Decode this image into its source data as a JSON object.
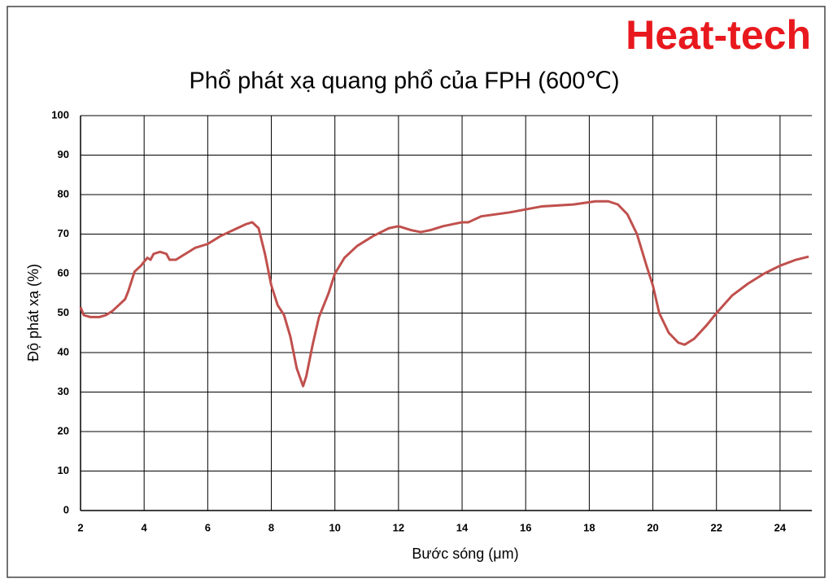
{
  "chart_data": {
    "type": "line",
    "title": "Phổ phát xạ quang phổ của FPH (600℃)",
    "annotations": [
      "Heat-tech"
    ],
    "x_label": "Bước sóng (μm)",
    "y_label": "Độ phát xạ (%)",
    "xlim": [
      2,
      25
    ],
    "xticks": [
      2,
      4,
      6,
      8,
      10,
      12,
      14,
      16,
      18,
      20,
      22,
      24
    ],
    "ylim": [
      0,
      100
    ],
    "yticks": [
      0,
      10,
      20,
      30,
      40,
      50,
      60,
      70,
      80,
      90,
      100
    ],
    "grid": true,
    "series": [
      {
        "name": "FPH",
        "color": "#c0504d",
        "x": [
          2.0,
          2.1,
          2.3,
          2.6,
          2.8,
          3.0,
          3.2,
          3.4,
          3.5,
          3.6,
          3.7,
          3.9,
          4.1,
          4.2,
          4.3,
          4.5,
          4.7,
          4.8,
          5.0,
          5.3,
          5.6,
          6.0,
          6.4,
          6.8,
          7.2,
          7.4,
          7.6,
          7.8,
          8.0,
          8.2,
          8.4,
          8.6,
          8.8,
          9.0,
          9.1,
          9.3,
          9.5,
          9.8,
          10.0,
          10.3,
          10.7,
          11.2,
          11.7,
          12.0,
          12.4,
          12.7,
          13.0,
          13.4,
          14.0,
          14.2,
          14.6,
          15.5,
          16.5,
          17.5,
          18.2,
          18.6,
          18.9,
          19.2,
          19.5,
          19.8,
          20.0,
          20.2,
          20.5,
          20.8,
          21.0,
          21.3,
          21.7,
          22.0,
          22.5,
          23.0,
          23.5,
          24.0,
          24.5,
          24.9
        ],
        "values": [
          51.5,
          49.5,
          49,
          49,
          49.5,
          50.5,
          52,
          53.5,
          55.5,
          58,
          60.5,
          62,
          64,
          63.5,
          65,
          65.5,
          65,
          63.5,
          63.5,
          65,
          66.5,
          67.5,
          69.5,
          71,
          72.5,
          73,
          71.5,
          65,
          57,
          52,
          49.5,
          44,
          36,
          31.5,
          34,
          42,
          49,
          55,
          60,
          64,
          67,
          69.5,
          71.5,
          72,
          71,
          70.5,
          71,
          72,
          73,
          73,
          74.5,
          75.5,
          77,
          77.5,
          78.3,
          78.3,
          77.5,
          75,
          70,
          62,
          57,
          50,
          45,
          42.5,
          42,
          43.5,
          47,
          50,
          54.5,
          57.5,
          60,
          62,
          63.5,
          64.3
        ]
      }
    ]
  }
}
